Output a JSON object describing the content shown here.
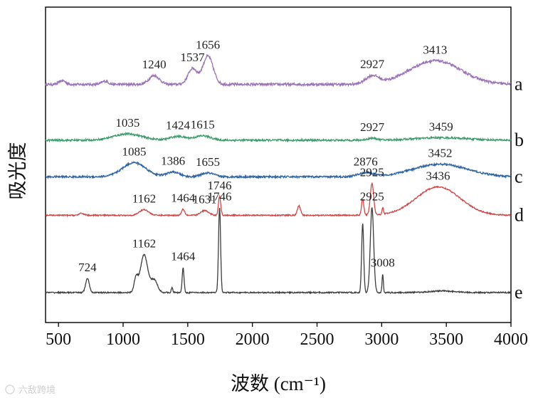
{
  "chart_data": {
    "type": "line",
    "title": "",
    "xlabel": "波数 (cm⁻¹)",
    "ylabel": "吸光度",
    "xlim": [
      400,
      4000
    ],
    "ylim": [
      0,
      1
    ],
    "x_ticks": [
      500,
      1000,
      1500,
      2000,
      2500,
      3000,
      3500,
      4000
    ],
    "grid": false,
    "y_tick_labels": false,
    "legend": "labels at right end of each curve",
    "series": [
      {
        "name": "a",
        "color": "#9b72b8",
        "baseline": 0.755,
        "noise": 0.004,
        "features": [
          {
            "x": 530,
            "h": 0.012,
            "w": 25
          },
          {
            "x": 860,
            "h": 0.01,
            "w": 25
          },
          {
            "x": 1240,
            "h": 0.028,
            "w": 40
          },
          {
            "x": 1537,
            "h": 0.05,
            "w": 35
          },
          {
            "x": 1656,
            "h": 0.09,
            "w": 40
          },
          {
            "x": 2927,
            "h": 0.025,
            "w": 50
          },
          {
            "x": 3413,
            "h": 0.075,
            "w": 200
          }
        ],
        "peak_labels": [
          {
            "x": 1240,
            "text": "1240"
          },
          {
            "x": 1537,
            "text": "1537"
          },
          {
            "x": 1656,
            "text": "1656"
          },
          {
            "x": 2927,
            "text": "2927"
          },
          {
            "x": 3413,
            "text": "3413"
          }
        ]
      },
      {
        "name": "b",
        "color": "#3a9c6a",
        "baseline": 0.578,
        "noise": 0.003,
        "features": [
          {
            "x": 1035,
            "h": 0.02,
            "w": 110
          },
          {
            "x": 1424,
            "h": 0.012,
            "w": 60
          },
          {
            "x": 1615,
            "h": 0.014,
            "w": 60
          },
          {
            "x": 2927,
            "h": 0.006,
            "w": 40
          },
          {
            "x": 3459,
            "h": 0.008,
            "w": 200
          }
        ],
        "peak_labels": [
          {
            "x": 1035,
            "text": "1035"
          },
          {
            "x": 1424,
            "text": "1424"
          },
          {
            "x": 1615,
            "text": "1615"
          },
          {
            "x": 2927,
            "text": "2927"
          },
          {
            "x": 3459,
            "text": "3459"
          }
        ]
      },
      {
        "name": "c",
        "color": "#2e64a6",
        "baseline": 0.462,
        "noise": 0.003,
        "features": [
          {
            "x": 1085,
            "h": 0.045,
            "w": 90
          },
          {
            "x": 1386,
            "h": 0.015,
            "w": 50
          },
          {
            "x": 1655,
            "h": 0.012,
            "w": 50
          },
          {
            "x": 2876,
            "h": 0.012,
            "w": 60
          },
          {
            "x": 3452,
            "h": 0.04,
            "w": 210
          }
        ],
        "peak_labels": [
          {
            "x": 1085,
            "text": "1085"
          },
          {
            "x": 1386,
            "text": "1386"
          },
          {
            "x": 1655,
            "text": "1655"
          },
          {
            "x": 2876,
            "text": "2876"
          },
          {
            "x": 3452,
            "text": "3452"
          }
        ]
      },
      {
        "name": "d",
        "color": "#d14545",
        "baseline": 0.34,
        "noise": 0.002,
        "features": [
          {
            "x": 680,
            "h": 0.006,
            "w": 20
          },
          {
            "x": 1162,
            "h": 0.018,
            "w": 35
          },
          {
            "x": 1464,
            "h": 0.02,
            "w": 12
          },
          {
            "x": 1631,
            "h": 0.015,
            "w": 30
          },
          {
            "x": 1746,
            "h": 0.06,
            "w": 9
          },
          {
            "x": 2360,
            "h": 0.03,
            "w": 12
          },
          {
            "x": 2853,
            "h": 0.05,
            "w": 9
          },
          {
            "x": 2925,
            "h": 0.1,
            "w": 13
          },
          {
            "x": 3008,
            "h": 0.02,
            "w": 6
          },
          {
            "x": 3436,
            "h": 0.09,
            "w": 170
          }
        ],
        "peak_labels": [
          {
            "x": 1162,
            "text": "1162"
          },
          {
            "x": 1464,
            "text": "1464"
          },
          {
            "x": 1631,
            "text": "1631"
          },
          {
            "x": 1746,
            "text": "1746"
          },
          {
            "x": 2925,
            "text": "2925"
          },
          {
            "x": 3436,
            "text": "3436"
          }
        ]
      },
      {
        "name": "e",
        "color": "#3c3c3c",
        "baseline": 0.095,
        "noise": 0.002,
        "features": [
          {
            "x": 724,
            "h": 0.045,
            "w": 14
          },
          {
            "x": 1100,
            "h": 0.045,
            "w": 15
          },
          {
            "x": 1162,
            "h": 0.12,
            "w": 28
          },
          {
            "x": 1240,
            "h": 0.04,
            "w": 25
          },
          {
            "x": 1378,
            "h": 0.015,
            "w": 6
          },
          {
            "x": 1464,
            "h": 0.08,
            "w": 7
          },
          {
            "x": 1746,
            "h": 0.27,
            "w": 8
          },
          {
            "x": 2853,
            "h": 0.22,
            "w": 8
          },
          {
            "x": 2925,
            "h": 0.27,
            "w": 13
          },
          {
            "x": 3008,
            "h": 0.06,
            "w": 5
          },
          {
            "x": 3470,
            "h": 0.005,
            "w": 100
          }
        ],
        "peak_labels": [
          {
            "x": 724,
            "text": "724"
          },
          {
            "x": 1162,
            "text": "1162"
          },
          {
            "x": 1464,
            "text": "1464"
          },
          {
            "x": 1746,
            "text": "1746"
          },
          {
            "x": 2925,
            "text": "2925"
          },
          {
            "x": 3008,
            "text": "3008"
          }
        ]
      }
    ]
  },
  "watermark_text": "六敌跨境"
}
